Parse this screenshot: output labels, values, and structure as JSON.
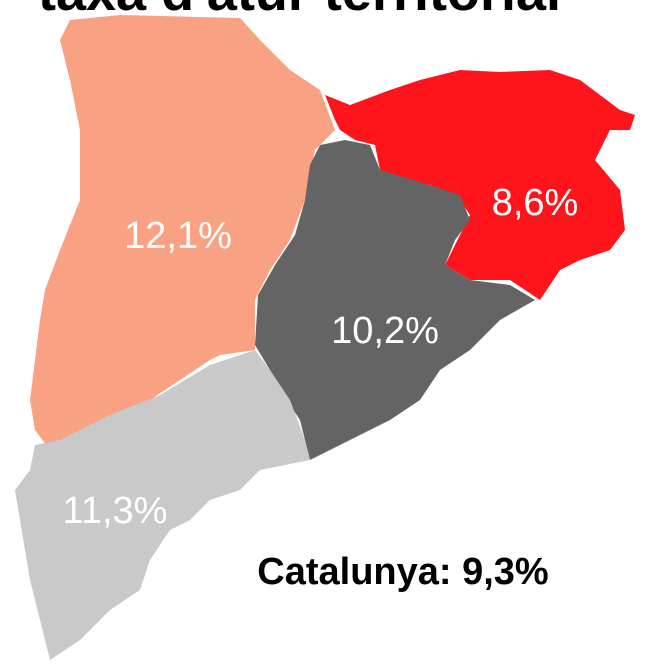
{
  "title": "taxa d'atur territorial",
  "regions": [
    {
      "label": "12,1%",
      "color": "#f9a283"
    },
    {
      "label": "8,6%",
      "color": "#ff141b"
    },
    {
      "label": "10,2%",
      "color": "#646464"
    },
    {
      "label": "11,3%",
      "color": "#c9c9c9"
    }
  ],
  "total": "Catalunya: 9,3%"
}
